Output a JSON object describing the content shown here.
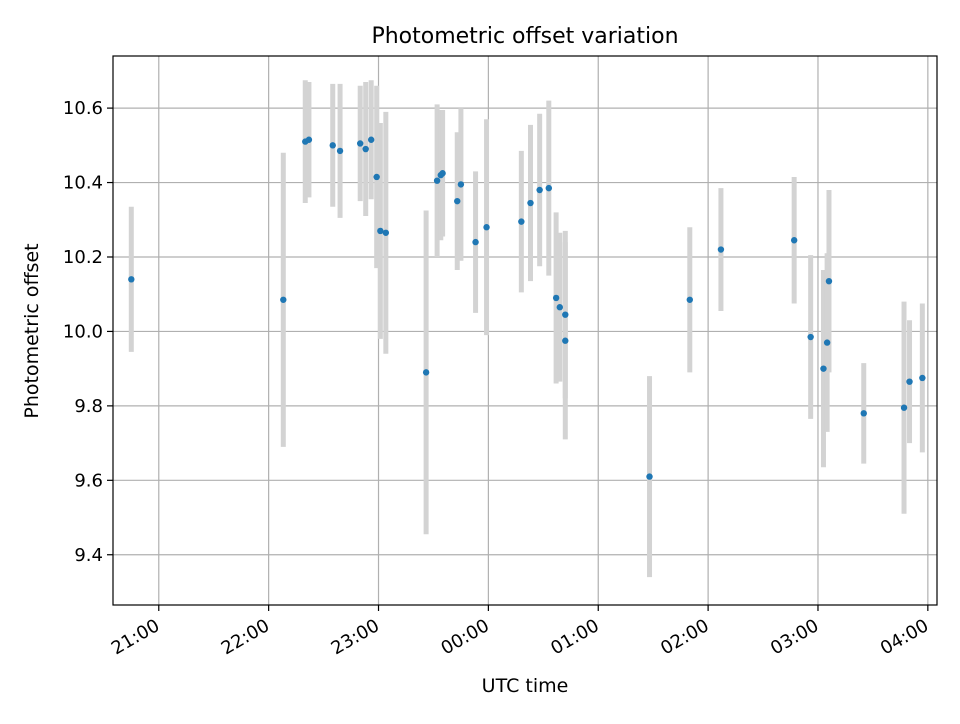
{
  "chart_data": {
    "type": "scatter",
    "title": "Photometric offset variation",
    "xlabel": "UTC time",
    "ylabel": "Photometric offset",
    "x_axis": {
      "type": "time",
      "start": "20:35",
      "end": "04:05",
      "ticks": [
        "21:00",
        "22:00",
        "23:00",
        "00:00",
        "01:00",
        "02:00",
        "03:00",
        "04:00"
      ]
    },
    "y_axis": {
      "ylim": [
        9.265,
        10.74
      ],
      "ticks": [
        "9.4",
        "9.6",
        "9.8",
        "10.0",
        "10.2",
        "10.4",
        "10.6"
      ]
    },
    "grid": true,
    "marker_color": "#1f77b4",
    "errorbar_color": "#d3d3d3",
    "points": [
      {
        "x": "20:45",
        "y": 10.14,
        "err": 0.195
      },
      {
        "x": "22:08",
        "y": 10.085,
        "err": 0.395
      },
      {
        "x": "22:20",
        "y": 10.51,
        "err": 0.165
      },
      {
        "x": "22:22",
        "y": 10.515,
        "err": 0.155
      },
      {
        "x": "22:35",
        "y": 10.5,
        "err": 0.165
      },
      {
        "x": "22:39",
        "y": 10.485,
        "err": 0.18
      },
      {
        "x": "22:50",
        "y": 10.505,
        "err": 0.155
      },
      {
        "x": "22:53",
        "y": 10.49,
        "err": 0.18
      },
      {
        "x": "22:56",
        "y": 10.515,
        "err": 0.16
      },
      {
        "x": "22:59",
        "y": 10.415,
        "err": 0.245
      },
      {
        "x": "23:01",
        "y": 10.27,
        "err": 0.29
      },
      {
        "x": "23:04",
        "y": 10.265,
        "err": 0.325
      },
      {
        "x": "23:26",
        "y": 9.89,
        "err": 0.435
      },
      {
        "x": "23:32",
        "y": 10.405,
        "err": 0.205
      },
      {
        "x": "23:34",
        "y": 10.42,
        "err": 0.175
      },
      {
        "x": "23:35",
        "y": 10.425,
        "err": 0.17
      },
      {
        "x": "23:43",
        "y": 10.35,
        "err": 0.185
      },
      {
        "x": "23:45",
        "y": 10.395,
        "err": 0.205
      },
      {
        "x": "23:53",
        "y": 10.24,
        "err": 0.19
      },
      {
        "x": "23:59",
        "y": 10.28,
        "err": 0.29
      },
      {
        "x": "00:18",
        "y": 10.295,
        "err": 0.19
      },
      {
        "x": "00:23",
        "y": 10.345,
        "err": 0.21
      },
      {
        "x": "00:28",
        "y": 10.38,
        "err": 0.205
      },
      {
        "x": "00:33",
        "y": 10.385,
        "err": 0.235
      },
      {
        "x": "00:37",
        "y": 10.09,
        "err": 0.23
      },
      {
        "x": "00:39",
        "y": 10.065,
        "err": 0.2
      },
      {
        "x": "00:42",
        "y": 10.045,
        "err": 0.225
      },
      {
        "x": "00:42",
        "y": 9.975,
        "err": 0.265
      },
      {
        "x": "01:28",
        "y": 9.61,
        "err": 0.27
      },
      {
        "x": "01:50",
        "y": 10.085,
        "err": 0.195
      },
      {
        "x": "02:07",
        "y": 10.22,
        "err": 0.165
      },
      {
        "x": "02:47",
        "y": 10.245,
        "err": 0.17
      },
      {
        "x": "02:56",
        "y": 9.985,
        "err": 0.22
      },
      {
        "x": "03:03",
        "y": 9.9,
        "err": 0.265
      },
      {
        "x": "03:05",
        "y": 9.97,
        "err": 0.24
      },
      {
        "x": "03:06",
        "y": 10.135,
        "err": 0.245
      },
      {
        "x": "03:25",
        "y": 9.78,
        "err": 0.135
      },
      {
        "x": "03:47",
        "y": 9.795,
        "err": 0.285
      },
      {
        "x": "03:50",
        "y": 9.865,
        "err": 0.165
      },
      {
        "x": "03:57",
        "y": 9.875,
        "err": 0.2
      }
    ]
  }
}
